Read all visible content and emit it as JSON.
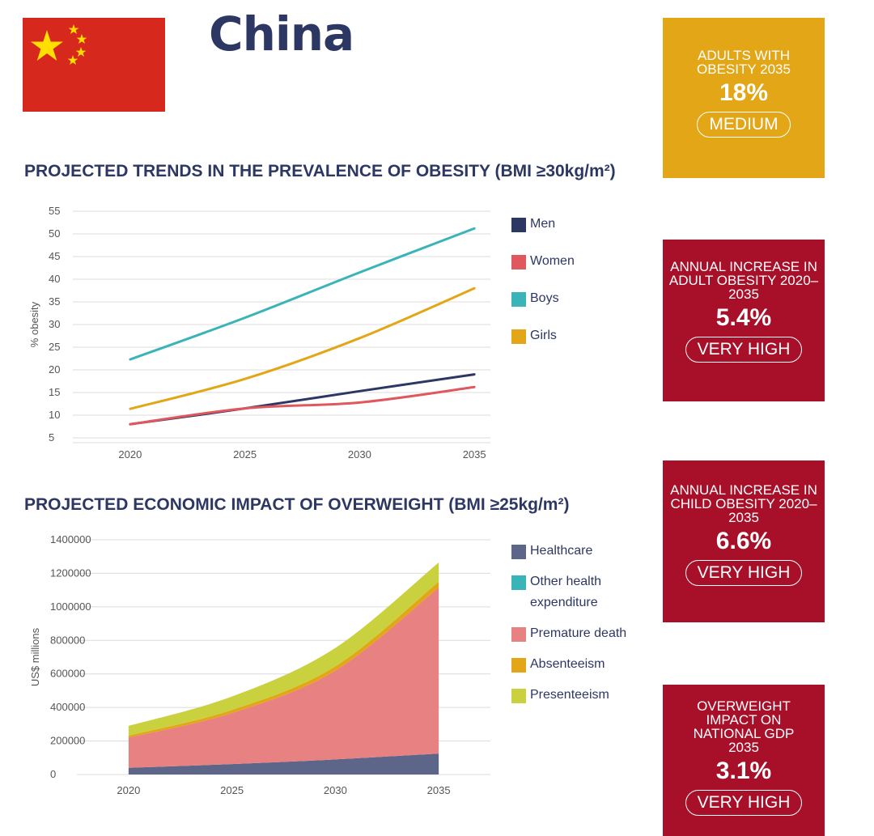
{
  "header": {
    "title": "China"
  },
  "cards": [
    {
      "heading": "ADULTS WITH OBESITY 2035",
      "value": "18%",
      "rating": "MEDIUM",
      "color": "#e3a616"
    },
    {
      "heading": "ANNUAL INCREASE IN ADULT OBESITY 2020–2035",
      "value": "5.4%",
      "rating": "VERY HIGH",
      "color": "#a8102a"
    },
    {
      "heading": "ANNUAL INCREASE IN CHILD OBESITY 2020–2035",
      "value": "6.6%",
      "rating": "VERY HIGH",
      "color": "#a8102a"
    },
    {
      "heading": "OVERWEIGHT IMPACT ON NATIONAL GDP 2035",
      "value": "3.1%",
      "rating": "VERY HIGH",
      "color": "#a8102a"
    }
  ],
  "chart_data": [
    {
      "type": "line",
      "title": "PROJECTED TRENDS IN THE PREVALENCE OF OBESITY (BMI ≥30kg/m²)",
      "ylabel": "% obesity",
      "xlabel": "",
      "x": [
        2020,
        2025,
        2030,
        2035
      ],
      "x_ticks": [
        "2020",
        "2025",
        "2030",
        "2035"
      ],
      "y_ticks": [
        "55",
        "50",
        "45",
        "40",
        "35",
        "30",
        "25",
        "20",
        "15",
        "10",
        "5"
      ],
      "ylim": [
        5,
        55
      ],
      "grid": true,
      "legend_position": "right",
      "series": [
        {
          "name": "Men",
          "color": "#2d3764",
          "values": [
            8,
            11.5,
            15.3,
            19
          ]
        },
        {
          "name": "Women",
          "color": "#e0585e",
          "values": [
            8,
            11.5,
            12.8,
            16.2
          ]
        },
        {
          "name": "Boys",
          "color": "#3bb4b9",
          "values": [
            22.3,
            31.5,
            41.5,
            51.2
          ]
        },
        {
          "name": "Girls",
          "color": "#e3a616",
          "values": [
            11.4,
            18,
            27,
            38
          ]
        }
      ]
    },
    {
      "type": "area",
      "title": "PROJECTED ECONOMIC IMPACT OF OVERWEIGHT (BMI ≥25kg/m²)",
      "ylabel": "US$ millions",
      "xlabel": "",
      "x": [
        2020,
        2025,
        2030,
        2035
      ],
      "x_ticks": [
        "2020",
        "2025",
        "2030",
        "2035"
      ],
      "y_ticks": [
        "1400000",
        "1200000",
        "1000000",
        "800000",
        "600000",
        "400000",
        "200000",
        "0"
      ],
      "ylim": [
        0,
        1400000
      ],
      "stacked": true,
      "grid": true,
      "legend_position": "right",
      "series": [
        {
          "name": "Healthcare",
          "color": "#5d6688",
          "values": [
            40000,
            62000,
            90000,
            125000
          ]
        },
        {
          "name": "Other health expenditure",
          "color": "#3bb4b9",
          "values": [
            0,
            0,
            0,
            0
          ]
        },
        {
          "name": "Premature death",
          "color": "#e88181",
          "values": [
            180000,
            305000,
            530000,
            990000
          ]
        },
        {
          "name": "Absenteeism",
          "color": "#e3a616",
          "values": [
            12000,
            18000,
            25000,
            35000
          ]
        },
        {
          "name": "Presenteeism",
          "color": "#c9d23e",
          "values": [
            58000,
            80000,
            110000,
            115000
          ]
        }
      ]
    }
  ]
}
